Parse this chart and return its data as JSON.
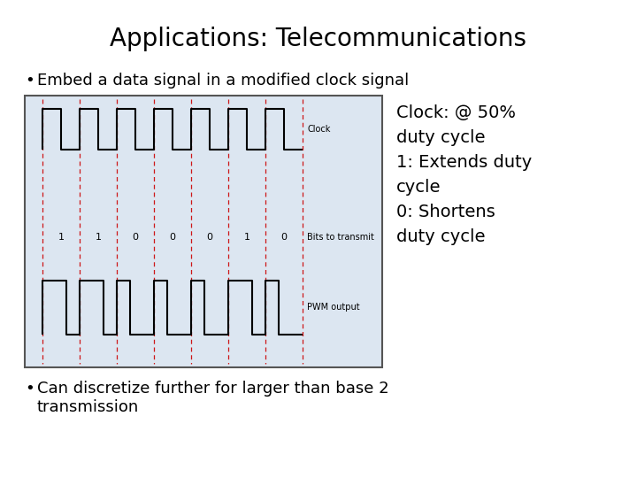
{
  "title": "Applications: Telecommunications",
  "bullet1": "Embed a data signal in a modified clock signal",
  "bullet2": "Can discretize further for larger than base 2\ntransmission",
  "note_lines": [
    "Clock: @ 50%",
    "duty cycle",
    "1: Extends duty",
    "cycle",
    "0: Shortens",
    "duty cycle"
  ],
  "bits": [
    1,
    1,
    0,
    0,
    0,
    1,
    0
  ],
  "diagram_bg": "#dce6f1",
  "diagram_border": "#888888",
  "bg_color": "#ffffff",
  "red_dashed_color": "#cc0000",
  "signal_color": "#000000",
  "label_clock": "Clock",
  "label_bits": "Bits to transmit",
  "label_pwm": "PWM output",
  "title_fontsize": 20,
  "bullet_fontsize": 13,
  "note_fontsize": 14,
  "signal_label_fontsize": 7,
  "bit_label_fontsize": 8
}
